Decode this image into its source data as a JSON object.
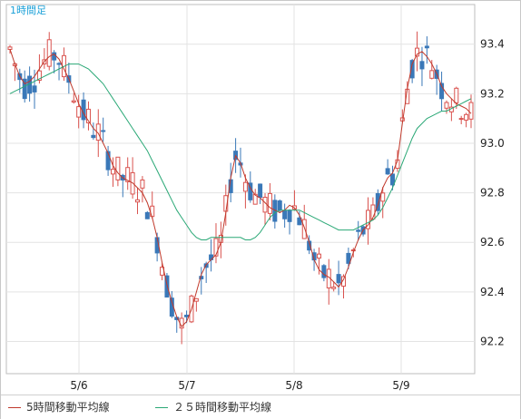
{
  "chart_data": {
    "type": "candlestick",
    "period_label": "1時間足",
    "x_tick_labels": [
      "5/6",
      "5/7",
      "5/8",
      "5/9"
    ],
    "y_ticks": [
      92.2,
      92.4,
      92.6,
      92.8,
      93.0,
      93.2,
      93.4
    ],
    "y_tick_labels": [
      "92.2",
      "92.4",
      "92.6",
      "92.8",
      "93.0",
      "93.2",
      "93.4"
    ],
    "ylim": [
      92.07,
      93.56
    ],
    "candles_count_approx": 120,
    "grid": true,
    "legend_position": "bottom-left",
    "series": [
      {
        "name": "5時間移動平均線",
        "color": "#c0392b",
        "values": [
          93.38,
          93.32,
          93.27,
          93.24,
          93.25,
          93.27,
          93.3,
          93.33,
          93.35,
          93.36,
          93.34,
          93.3,
          93.26,
          93.21,
          93.16,
          93.12,
          93.09,
          93.06,
          93.04,
          93.0,
          92.96,
          92.91,
          92.88,
          92.86,
          92.85,
          92.84,
          92.82,
          92.8,
          92.76,
          92.7,
          92.62,
          92.52,
          92.43,
          92.36,
          92.3,
          92.26,
          92.28,
          92.33,
          92.4,
          92.47,
          92.51,
          92.53,
          92.55,
          92.6,
          92.72,
          92.86,
          92.95,
          92.92,
          92.86,
          92.82,
          92.79,
          92.78,
          92.76,
          92.74,
          92.73,
          92.72,
          92.73,
          92.75,
          92.74,
          92.71,
          92.66,
          92.6,
          92.53,
          92.49,
          92.47,
          92.46,
          92.44,
          92.42,
          92.45,
          92.5,
          92.56,
          92.61,
          92.65,
          92.67,
          92.7,
          92.75,
          92.82,
          92.86,
          92.88,
          92.93,
          93.08,
          93.22,
          93.32,
          93.36,
          93.37,
          93.35,
          93.32,
          93.28,
          93.23,
          93.2,
          93.18,
          93.16,
          93.15,
          93.14,
          93.12
        ]
      },
      {
        "name": "２５時間移動平均線",
        "color": "#2aa876",
        "values": [
          93.2,
          93.21,
          93.22,
          93.23,
          93.24,
          93.25,
          93.26,
          93.27,
          93.28,
          93.29,
          93.3,
          93.31,
          93.32,
          93.32,
          93.32,
          93.31,
          93.3,
          93.28,
          93.26,
          93.24,
          93.21,
          93.18,
          93.15,
          93.12,
          93.09,
          93.06,
          93.03,
          93.0,
          92.97,
          92.93,
          92.89,
          92.85,
          92.81,
          92.77,
          92.73,
          92.7,
          92.67,
          92.64,
          92.62,
          92.61,
          92.61,
          92.62,
          92.62,
          92.62,
          92.62,
          92.62,
          92.62,
          92.62,
          92.61,
          92.61,
          92.62,
          92.64,
          92.67,
          92.7,
          92.72,
          92.73,
          92.73,
          92.73,
          92.73,
          92.73,
          92.72,
          92.71,
          92.7,
          92.69,
          92.68,
          92.67,
          92.66,
          92.65,
          92.65,
          92.65,
          92.65,
          92.66,
          92.67,
          92.68,
          92.69,
          92.71,
          92.74,
          92.78,
          92.82,
          92.87,
          92.92,
          92.97,
          93.02,
          93.06,
          93.08,
          93.1,
          93.11,
          93.12,
          93.13,
          93.13,
          93.14,
          93.15,
          93.16,
          93.17,
          93.18
        ]
      }
    ]
  }
}
